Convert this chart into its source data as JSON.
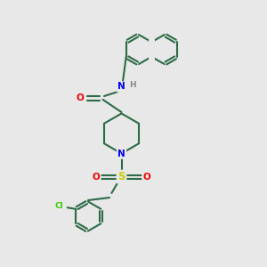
{
  "bg": "#e8e8e8",
  "bond_color": "#2d6b47",
  "atom_colors": {
    "N": "#0000ee",
    "O": "#ee0000",
    "S": "#cccc00",
    "Cl": "#33cc00",
    "H": "#888888"
  },
  "figsize": [
    3.0,
    3.0
  ],
  "dpi": 100
}
